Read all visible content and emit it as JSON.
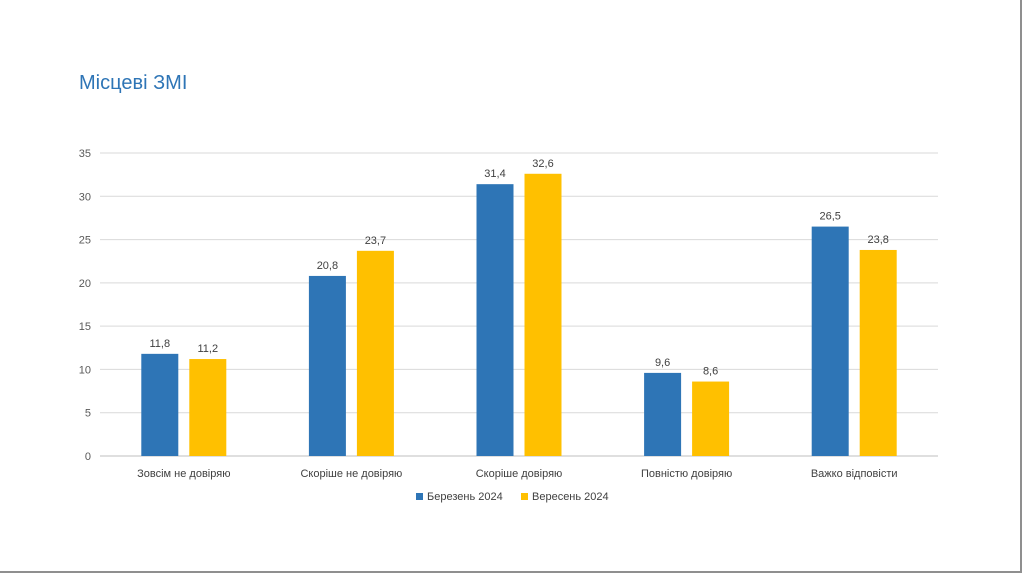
{
  "chart_data": {
    "type": "bar",
    "title": "Місцеві ЗМІ",
    "categories": [
      "Зовсім не довіряю",
      "Скоріше не довіряю",
      "Скоріше довіряю",
      "Повністю довіряю",
      "Важко відповісти"
    ],
    "series": [
      {
        "name": "Березень 2024",
        "color": "#2e75b6",
        "values": [
          11.8,
          20.8,
          31.4,
          9.6,
          26.5
        ],
        "labels": [
          "11,8",
          "20,8",
          "31,4",
          "9,6",
          "26,5"
        ]
      },
      {
        "name": "Вересень 2024",
        "color": "#ffc000",
        "values": [
          11.2,
          23.7,
          32.6,
          8.6,
          23.8
        ],
        "labels": [
          "11,2",
          "23,7",
          "32,6",
          "8,6",
          "23,8"
        ]
      }
    ],
    "yticks": [
      0,
      5,
      10,
      15,
      20,
      25,
      30,
      35
    ],
    "ylim": [
      0,
      35
    ],
    "xlabel": "",
    "ylabel": "",
    "grid": true,
    "legend_position": "bottom"
  }
}
